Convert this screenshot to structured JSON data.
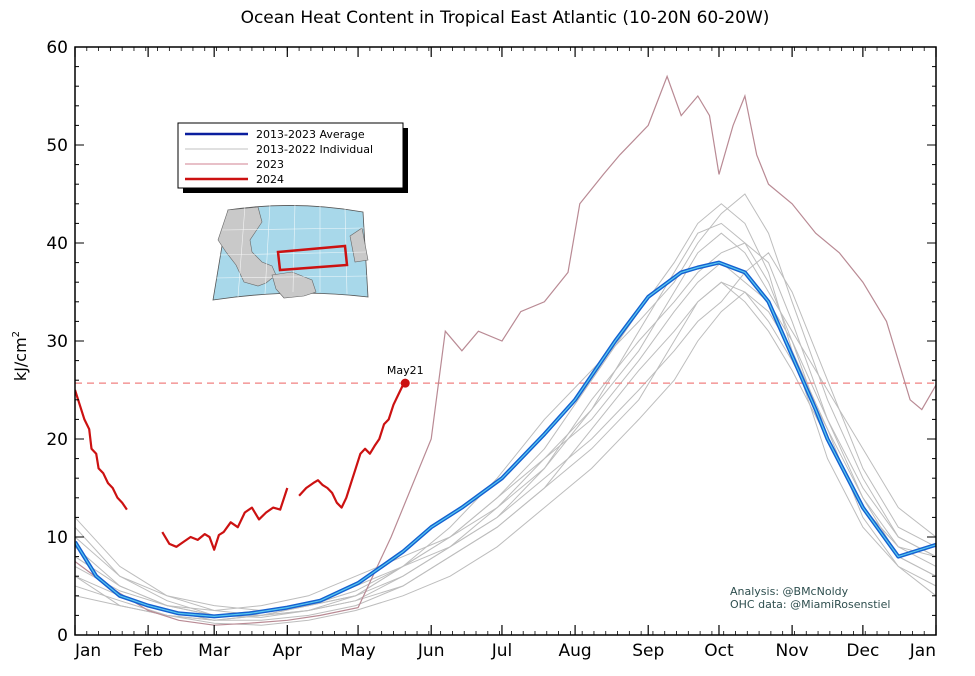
{
  "chart_data": {
    "type": "line",
    "title": "Ocean Heat Content in Tropical East Atlantic (10-20N 60-20W)",
    "ylabel": "kJ/cm",
    "ylabel_sup": "2",
    "ylim": [
      0,
      60
    ],
    "xlim": [
      1,
      366
    ],
    "yticks": [
      0,
      10,
      20,
      30,
      40,
      50,
      60
    ],
    "x_tick_positions": [
      1,
      32,
      60,
      91,
      121,
      152,
      182,
      213,
      244,
      274,
      305,
      335,
      366
    ],
    "x_tick_labels": [
      "Jan",
      "Feb",
      "Mar",
      "Apr",
      "May",
      "Jun",
      "Jul",
      "Aug",
      "Sep",
      "Oct",
      "Nov",
      "Dec",
      "Jan"
    ],
    "grid": false,
    "legend_position": "upper-left",
    "legend": [
      {
        "label": "2013-2023 Average",
        "color": "#0a1e9e",
        "width": 2.5
      },
      {
        "label": "2013-2022 Individual",
        "color": "#c0c0c0",
        "width": 1
      },
      {
        "label": "2023",
        "color": "#d08090",
        "width": 1
      },
      {
        "label": "2024",
        "color": "#cc1111",
        "width": 2.5
      }
    ],
    "colors": {
      "average_outer": "#1560d0",
      "average_inner": "#56c8f0",
      "individual": "#bdbdbd",
      "y2023": "#b98a94",
      "y2024": "#cc1111",
      "reference_line": "#f08080"
    },
    "reference_line": {
      "y": 25.7,
      "style": "dashed"
    },
    "annotation": {
      "text": "May21",
      "x": 141,
      "y": 25.7
    },
    "series": [
      {
        "name": "2013-2023 Average",
        "x": [
          1,
          10,
          20,
          32,
          45,
          60,
          75,
          91,
          105,
          121,
          140,
          152,
          165,
          182,
          200,
          213,
          230,
          244,
          258,
          265,
          274,
          285,
          295,
          305,
          315,
          320,
          335,
          350,
          366
        ],
        "values": [
          9.5,
          6.0,
          4.0,
          3.0,
          2.2,
          1.9,
          2.2,
          2.8,
          3.5,
          5.3,
          8.5,
          11.0,
          13.0,
          16.0,
          20.5,
          24.0,
          30.0,
          34.5,
          37.0,
          37.5,
          38.0,
          37.0,
          34.0,
          28.5,
          23.0,
          20.0,
          13.0,
          8.0,
          9.2
        ]
      },
      {
        "name": "2023",
        "x": [
          1,
          15,
          32,
          45,
          60,
          75,
          91,
          105,
          121,
          135,
          152,
          158,
          165,
          172,
          182,
          190,
          200,
          210,
          215,
          225,
          232,
          244,
          252,
          258,
          265,
          270,
          274,
          280,
          285,
          290,
          295,
          305,
          315,
          325,
          335,
          345,
          355,
          360,
          366
        ],
        "values": [
          7.5,
          5.0,
          2.5,
          1.5,
          1.0,
          1.2,
          1.5,
          2.0,
          2.8,
          10.0,
          20.0,
          31.0,
          29.0,
          31.0,
          30.0,
          33.0,
          34.0,
          37.0,
          44.0,
          47.0,
          49.0,
          52.0,
          57.0,
          53.0,
          55.0,
          53.0,
          47.0,
          52.0,
          55.0,
          49.0,
          46.0,
          44.0,
          41.0,
          39.0,
          36.0,
          32.0,
          24.0,
          23.0,
          25.5
        ]
      },
      {
        "name": "2024",
        "segments": [
          {
            "x": [
              1,
              3,
              5,
              7,
              8,
              10,
              11,
              13,
              15,
              17,
              19,
              21,
              23
            ],
            "values": [
              25.0,
              23.5,
              22.0,
              21.0,
              19.0,
              18.5,
              17.0,
              16.5,
              15.5,
              15.0,
              14.0,
              13.5,
              12.8
            ]
          },
          {
            "x": [
              38,
              41,
              44,
              47,
              50,
              53,
              56,
              58,
              60,
              62,
              64,
              67,
              70,
              73,
              76,
              79,
              82,
              85,
              88,
              91
            ],
            "values": [
              10.5,
              9.3,
              9.0,
              9.5,
              10.0,
              9.7,
              10.3,
              10.0,
              8.7,
              10.2,
              10.5,
              11.5,
              11.0,
              12.5,
              13.0,
              11.8,
              12.5,
              13.0,
              12.8,
              15.0
            ]
          },
          {
            "x": [
              96,
              99,
              102,
              104,
              106,
              108,
              110,
              112,
              114,
              116,
              118,
              120,
              122,
              124,
              126,
              128,
              130,
              132,
              134,
              136,
              138,
              140,
              141
            ],
            "values": [
              14.2,
              15.0,
              15.5,
              15.8,
              15.3,
              15.0,
              14.5,
              13.5,
              13.0,
              14.0,
              15.5,
              17.0,
              18.5,
              19.0,
              18.5,
              19.3,
              20.0,
              21.5,
              22.0,
              23.5,
              24.5,
              25.5,
              25.7
            ]
          }
        ]
      }
    ],
    "individual_years": [
      {
        "x": [
          1,
          20,
          40,
          60,
          80,
          100,
          120,
          140,
          160,
          180,
          200,
          220,
          240,
          255,
          265,
          275,
          285,
          295,
          305,
          320,
          335,
          350,
          366
        ],
        "values": [
          5,
          3.5,
          2,
          1.5,
          2,
          3,
          4,
          7,
          10,
          14,
          19,
          26,
          33,
          38,
          42,
          44,
          42,
          37,
          29,
          18,
          11,
          7,
          5
        ]
      },
      {
        "x": [
          1,
          20,
          40,
          60,
          80,
          100,
          120,
          140,
          160,
          180,
          200,
          220,
          240,
          255,
          265,
          275,
          285,
          295,
          305,
          320,
          335,
          350,
          366
        ],
        "values": [
          8,
          5,
          3,
          2,
          2.5,
          3,
          5,
          7,
          9,
          12,
          17,
          24,
          30,
          34,
          37,
          39,
          40,
          38,
          32,
          22,
          14,
          9,
          7
        ]
      },
      {
        "x": [
          1,
          20,
          40,
          60,
          80,
          100,
          120,
          140,
          160,
          180,
          200,
          220,
          240,
          255,
          265,
          275,
          285,
          295,
          305,
          320,
          335,
          350,
          366
        ],
        "values": [
          12,
          7,
          4,
          3,
          2.5,
          3,
          4,
          6,
          9,
          13,
          18,
          22,
          28,
          33,
          36,
          38,
          36,
          34,
          30,
          22,
          15,
          10,
          8
        ]
      },
      {
        "x": [
          1,
          20,
          40,
          60,
          80,
          100,
          120,
          140,
          160,
          180,
          200,
          220,
          240,
          255,
          265,
          275,
          285,
          295,
          305,
          320,
          335,
          350,
          366
        ],
        "values": [
          6,
          4,
          2.5,
          1.5,
          1.5,
          2,
          3,
          5,
          8,
          11,
          15,
          19,
          24,
          30,
          34,
          36,
          34,
          31,
          27,
          20,
          13,
          8,
          6
        ]
      },
      {
        "x": [
          1,
          20,
          40,
          60,
          80,
          100,
          120,
          140,
          160,
          180,
          200,
          220,
          240,
          255,
          265,
          275,
          285,
          295,
          305,
          320,
          335,
          350,
          366
        ],
        "values": [
          10,
          6,
          4,
          2.5,
          2,
          2.5,
          4,
          7,
          11,
          16,
          22,
          27,
          32,
          36,
          40,
          43,
          45,
          41,
          34,
          24,
          16,
          10,
          8
        ]
      },
      {
        "x": [
          1,
          20,
          40,
          60,
          80,
          100,
          120,
          140,
          160,
          180,
          200,
          220,
          240,
          255,
          265,
          275,
          285,
          295,
          305,
          320,
          335,
          350,
          366
        ],
        "values": [
          4,
          3,
          2,
          1.2,
          1,
          1.5,
          2.5,
          4,
          6,
          9,
          13,
          17,
          22,
          26,
          30,
          33,
          35,
          33,
          29,
          21,
          12,
          7,
          4
        ]
      },
      {
        "x": [
          1,
          20,
          40,
          60,
          80,
          100,
          120,
          140,
          160,
          180,
          200,
          220,
          240,
          255,
          265,
          275,
          285,
          295,
          305,
          320,
          335,
          350,
          366
        ],
        "values": [
          9,
          5,
          3,
          2.5,
          3,
          4,
          6,
          8,
          10,
          13,
          17,
          23,
          31,
          37,
          41,
          42,
          40,
          36,
          30,
          20,
          13,
          9,
          8
        ]
      },
      {
        "x": [
          1,
          20,
          40,
          60,
          80,
          100,
          120,
          140,
          160,
          180,
          200,
          220,
          240,
          255,
          265,
          275,
          285,
          295,
          305,
          320,
          335,
          350,
          366
        ],
        "values": [
          7,
          4.5,
          3,
          2,
          1.8,
          2.5,
          3.5,
          6,
          9,
          12,
          16,
          20,
          25,
          29,
          32,
          34,
          37,
          39,
          35,
          26,
          17,
          11,
          9
        ]
      },
      {
        "x": [
          1,
          20,
          40,
          60,
          80,
          100,
          120,
          140,
          160,
          180,
          200,
          220,
          240,
          255,
          265,
          275,
          285,
          295,
          305,
          320,
          335,
          350,
          366
        ],
        "values": [
          11,
          6,
          3.5,
          2,
          2,
          3,
          4.5,
          7,
          10,
          14,
          18,
          23,
          29,
          35,
          39,
          41,
          39,
          35,
          31,
          25,
          19,
          13,
          10
        ]
      },
      {
        "x": [
          1,
          20,
          40,
          60,
          80,
          100,
          120,
          140,
          160,
          180,
          200,
          220,
          240,
          255,
          265,
          275,
          285,
          295,
          305,
          320,
          335,
          350,
          366
        ],
        "values": [
          6,
          3,
          2,
          1.5,
          2,
          2.5,
          3.5,
          5,
          8,
          11,
          15,
          21,
          27,
          31,
          34,
          36,
          35,
          32,
          28,
          21,
          14,
          8,
          6
        ]
      }
    ],
    "credits": [
      "Analysis: @BMcNoldy",
      "OHC data: @MiamiRosenstiel"
    ]
  }
}
